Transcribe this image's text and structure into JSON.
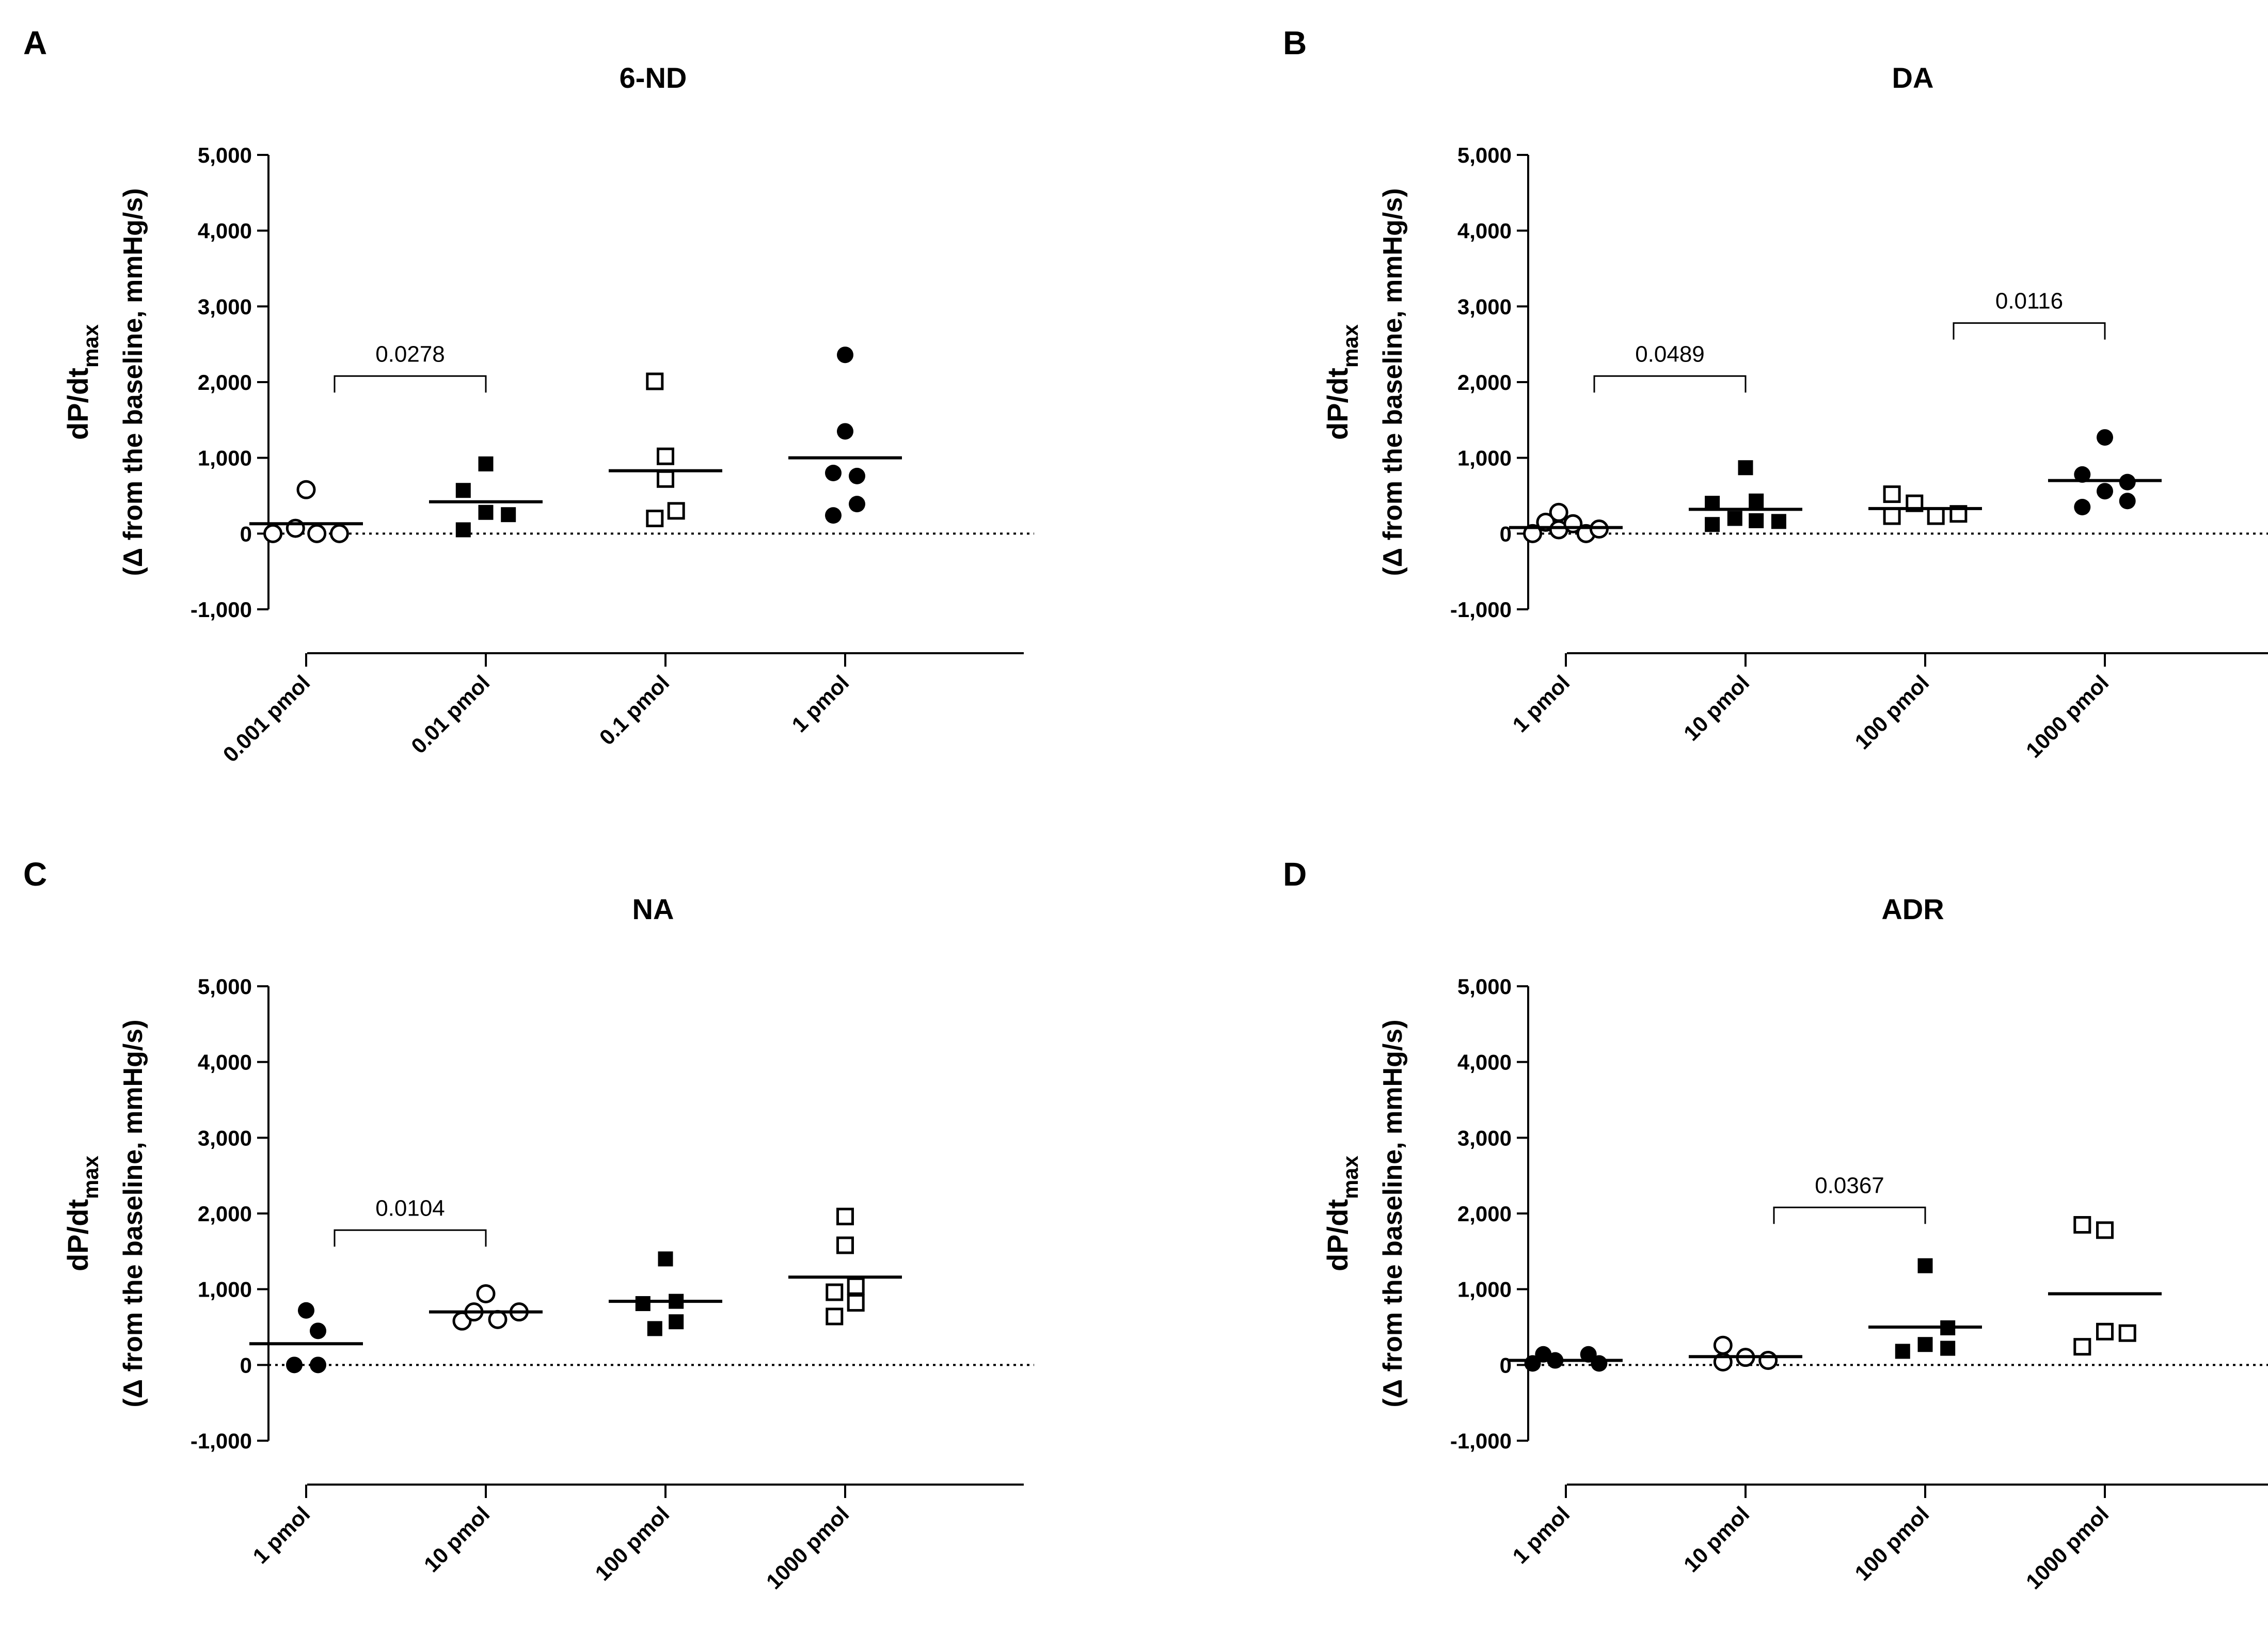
{
  "figure": {
    "ylabel_main": "dP/dt",
    "ylabel_main_sub": "max",
    "ylabel_second": "(Δ from the baseline, mmHg/s)"
  },
  "chart_data": [
    {
      "type": "scatter",
      "letter": "A",
      "title": "6-ND",
      "ylabel": "dP/dtmax (Δ from the baseline, mmHg/s)",
      "ylim": [
        -1000,
        5000
      ],
      "yticks": [
        -1000,
        0,
        1000,
        2000,
        3000,
        4000,
        5000
      ],
      "ytick_labels": [
        "-1,000",
        "0",
        "1,000",
        "2,000",
        "3,000",
        "4,000",
        "5,000"
      ],
      "baseline": 0,
      "categories": [
        "0.001 pmol",
        "0.01 pmol",
        "0.1 pmol",
        "1 pmol"
      ],
      "markers": [
        "open-circle",
        "filled-square",
        "open-square",
        "filled-circle"
      ],
      "points": [
        [
          {
            "x": -0.28,
            "y": 0
          },
          {
            "x": -0.09,
            "y": 70
          },
          {
            "x": 0.09,
            "y": 0
          },
          {
            "x": 0.28,
            "y": 0
          },
          {
            "x": 0,
            "y": 580
          }
        ],
        [
          {
            "x": -0.19,
            "y": 570
          },
          {
            "x": -0.19,
            "y": 50
          },
          {
            "x": 0,
            "y": 920
          },
          {
            "x": 0,
            "y": 280
          },
          {
            "x": 0.19,
            "y": 250
          }
        ],
        [
          {
            "x": -0.09,
            "y": 2010
          },
          {
            "x": 0,
            "y": 1020
          },
          {
            "x": 0,
            "y": 720
          },
          {
            "x": -0.09,
            "y": 200
          },
          {
            "x": 0.09,
            "y": 300
          }
        ],
        [
          {
            "x": 0,
            "y": 2360
          },
          {
            "x": 0,
            "y": 1350
          },
          {
            "x": -0.1,
            "y": 800
          },
          {
            "x": 0.1,
            "y": 760
          },
          {
            "x": -0.1,
            "y": 240
          },
          {
            "x": 0.1,
            "y": 390
          }
        ]
      ],
      "means": [
        130,
        420,
        830,
        1000
      ],
      "comparisons": [
        {
          "from": 0,
          "to": 1,
          "label": "0.0278",
          "y": 2080
        }
      ]
    },
    {
      "type": "scatter",
      "letter": "B",
      "title": "DA",
      "ylabel": "dP/dtmax (Δ from the baseline, mmHg/s)",
      "ylim": [
        -1000,
        5000
      ],
      "yticks": [
        -1000,
        0,
        1000,
        2000,
        3000,
        4000,
        5000
      ],
      "ytick_labels": [
        "-1,000",
        "0",
        "1,000",
        "2,000",
        "3,000",
        "4,000",
        "5,000"
      ],
      "baseline": 0,
      "categories": [
        "1 pmol",
        "10 pmol",
        "100 pmol",
        "1000 pmol"
      ],
      "markers": [
        "open-circle",
        "filled-square",
        "open-square",
        "filled-circle"
      ],
      "points": [
        [
          {
            "x": -0.28,
            "y": 0
          },
          {
            "x": -0.17,
            "y": 150
          },
          {
            "x": -0.06,
            "y": 280
          },
          {
            "x": -0.06,
            "y": 50
          },
          {
            "x": 0.06,
            "y": 130
          },
          {
            "x": 0.17,
            "y": 0
          },
          {
            "x": 0.28,
            "y": 60
          }
        ],
        [
          {
            "x": -0.28,
            "y": 400
          },
          {
            "x": -0.28,
            "y": 120
          },
          {
            "x": -0.09,
            "y": 200
          },
          {
            "x": 0,
            "y": 870
          },
          {
            "x": 0.09,
            "y": 430
          },
          {
            "x": 0.09,
            "y": 170
          },
          {
            "x": 0.28,
            "y": 160
          }
        ],
        [
          {
            "x": -0.28,
            "y": 520
          },
          {
            "x": -0.28,
            "y": 230
          },
          {
            "x": -0.09,
            "y": 400
          },
          {
            "x": 0.09,
            "y": 230
          },
          {
            "x": 0.28,
            "y": 260
          }
        ],
        [
          {
            "x": 0,
            "y": 1270
          },
          {
            "x": -0.19,
            "y": 780
          },
          {
            "x": 0.19,
            "y": 680
          },
          {
            "x": -0.19,
            "y": 350
          },
          {
            "x": 0,
            "y": 560
          },
          {
            "x": 0.19,
            "y": 430
          }
        ]
      ],
      "means": [
        80,
        320,
        330,
        700
      ],
      "comparisons": [
        {
          "from": 0,
          "to": 1,
          "label": "0.0489",
          "y": 2080
        },
        {
          "from": 2,
          "to": 3,
          "label": "0.0116",
          "y": 2780
        }
      ]
    },
    {
      "type": "scatter",
      "letter": "C",
      "title": "NA",
      "ylabel": "dP/dtmax (Δ from the baseline, mmHg/s)",
      "ylim": [
        -1000,
        5000
      ],
      "yticks": [
        -1000,
        0,
        1000,
        2000,
        3000,
        4000,
        5000
      ],
      "ytick_labels": [
        "-1,000",
        "0",
        "1,000",
        "2,000",
        "3,000",
        "4,000",
        "5,000"
      ],
      "baseline": 0,
      "categories": [
        "1 pmol",
        "10 pmol",
        "100 pmol",
        "1000 pmol"
      ],
      "markers": [
        "filled-circle",
        "open-circle",
        "filled-square",
        "open-square"
      ],
      "points": [
        [
          {
            "x": 0,
            "y": 720
          },
          {
            "x": 0.1,
            "y": 450
          },
          {
            "x": -0.1,
            "y": 0
          },
          {
            "x": 0.1,
            "y": 0
          }
        ],
        [
          {
            "x": 0,
            "y": 940
          },
          {
            "x": -0.2,
            "y": 580
          },
          {
            "x": -0.1,
            "y": 700
          },
          {
            "x": 0.1,
            "y": 600
          },
          {
            "x": 0.28,
            "y": 700
          }
        ],
        [
          {
            "x": 0,
            "y": 1400
          },
          {
            "x": -0.19,
            "y": 810
          },
          {
            "x": 0.09,
            "y": 840
          },
          {
            "x": -0.09,
            "y": 480
          },
          {
            "x": 0.09,
            "y": 570
          }
        ],
        [
          {
            "x": 0,
            "y": 1960
          },
          {
            "x": 0,
            "y": 1580
          },
          {
            "x": -0.09,
            "y": 960
          },
          {
            "x": 0.09,
            "y": 1040
          },
          {
            "x": -0.09,
            "y": 640
          },
          {
            "x": 0.09,
            "y": 820
          }
        ]
      ],
      "means": [
        280,
        700,
        840,
        1160
      ],
      "comparisons": [
        {
          "from": 0,
          "to": 1,
          "label": "0.0104",
          "y": 1780
        }
      ]
    },
    {
      "type": "scatter",
      "letter": "D",
      "title": "ADR",
      "ylabel": "dP/dtmax (Δ from the baseline, mmHg/s)",
      "ylim": [
        -1000,
        5000
      ],
      "yticks": [
        -1000,
        0,
        1000,
        2000,
        3000,
        4000,
        5000
      ],
      "ytick_labels": [
        "-1,000",
        "0",
        "1,000",
        "2,000",
        "3,000",
        "4,000",
        "5,000"
      ],
      "baseline": 0,
      "categories": [
        "1 pmol",
        "10 pmol",
        "100 pmol",
        "1000 pmol"
      ],
      "markers": [
        "filled-circle",
        "open-circle",
        "filled-square",
        "open-square"
      ],
      "points": [
        [
          {
            "x": -0.28,
            "y": 20
          },
          {
            "x": -0.19,
            "y": 140
          },
          {
            "x": -0.09,
            "y": 60
          },
          {
            "x": 0.19,
            "y": 140
          },
          {
            "x": 0.28,
            "y": 20
          }
        ],
        [
          {
            "x": -0.19,
            "y": 260
          },
          {
            "x": -0.19,
            "y": 40
          },
          {
            "x": 0,
            "y": 100
          },
          {
            "x": 0.19,
            "y": 60
          }
        ],
        [
          {
            "x": -0.19,
            "y": 180
          },
          {
            "x": 0,
            "y": 1310
          },
          {
            "x": 0,
            "y": 270
          },
          {
            "x": 0.19,
            "y": 490
          },
          {
            "x": 0.19,
            "y": 220
          }
        ],
        [
          {
            "x": -0.19,
            "y": 1850
          },
          {
            "x": 0,
            "y": 1780
          },
          {
            "x": -0.19,
            "y": 240
          },
          {
            "x": 0,
            "y": 440
          },
          {
            "x": 0.19,
            "y": 420
          }
        ]
      ],
      "means": [
        60,
        110,
        500,
        940
      ],
      "comparisons": [
        {
          "from": 1,
          "to": 2,
          "label": "0.0367",
          "y": 2080
        }
      ]
    }
  ]
}
